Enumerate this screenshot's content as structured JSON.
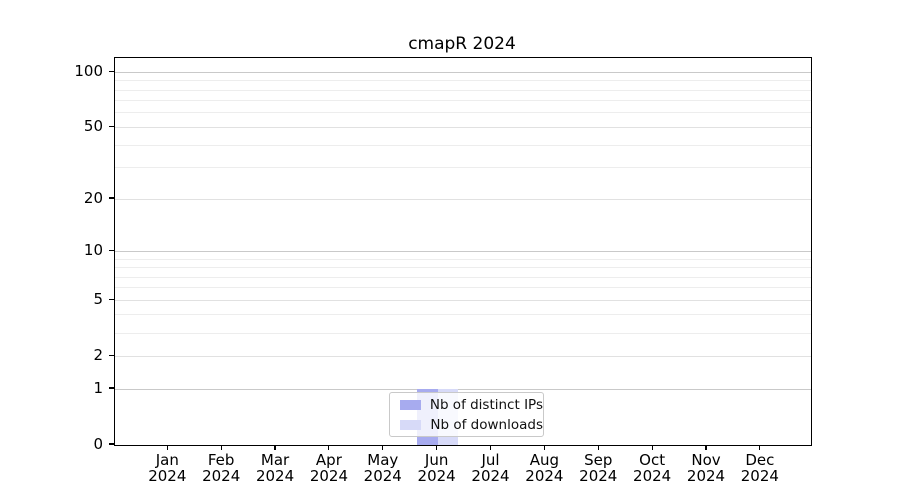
{
  "chart_data": {
    "type": "bar",
    "title": "cmapR 2024",
    "x_categories": [
      {
        "month": "Jan",
        "year": "2024"
      },
      {
        "month": "Feb",
        "year": "2024"
      },
      {
        "month": "Mar",
        "year": "2024"
      },
      {
        "month": "Apr",
        "year": "2024"
      },
      {
        "month": "May",
        "year": "2024"
      },
      {
        "month": "Jun",
        "year": "2024"
      },
      {
        "month": "Jul",
        "year": "2024"
      },
      {
        "month": "Aug",
        "year": "2024"
      },
      {
        "month": "Sep",
        "year": "2024"
      },
      {
        "month": "Oct",
        "year": "2024"
      },
      {
        "month": "Nov",
        "year": "2024"
      },
      {
        "month": "Dec",
        "year": "2024"
      }
    ],
    "series": [
      {
        "name": "Nb of distinct IPs",
        "color": "#a7abef",
        "values": [
          0,
          0,
          0,
          0,
          0,
          1,
          0,
          0,
          0,
          0,
          0,
          0
        ]
      },
      {
        "name": "Nb of downloads",
        "color": "#d7daf8",
        "values": [
          0,
          0,
          0,
          0,
          0,
          1,
          0,
          0,
          0,
          0,
          0,
          0
        ]
      }
    ],
    "y_scale": "log10(1+x)",
    "y_major_ticks": [
      0,
      1,
      2,
      5,
      10,
      20,
      50,
      100
    ],
    "y_minor_gridlines": [
      3,
      4,
      6,
      7,
      8,
      9,
      30,
      40,
      60,
      70,
      80,
      90
    ],
    "ylim": [
      0,
      119
    ],
    "grid": "horizontal",
    "legend": {
      "position": "bottom-center-inside",
      "entries": [
        "Nb of distinct IPs",
        "Nb of downloads"
      ]
    }
  }
}
